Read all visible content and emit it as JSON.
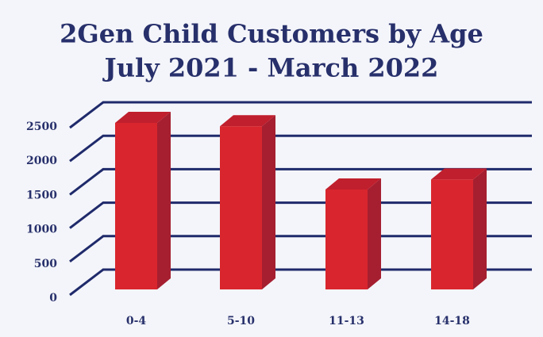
{
  "chart_data": {
    "type": "bar3d",
    "title": "2Gen Child Customers by Age",
    "subtitle": "July 2021 - March 2022",
    "categories": [
      "0-4",
      "5-10",
      "11-13",
      "14-18"
    ],
    "values": [
      2500,
      2450,
      1500,
      1650
    ],
    "color": "#d9262e",
    "ylim": [
      0,
      2500
    ],
    "yticks": [
      0,
      500,
      1000,
      1500,
      2000,
      2500
    ],
    "grid": true
  }
}
